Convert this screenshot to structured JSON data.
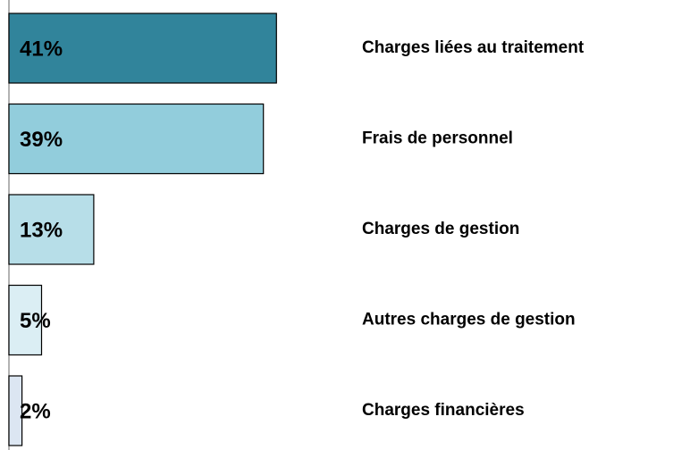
{
  "chart_data": {
    "type": "hbar",
    "categories": [
      "Charges liées au traitement",
      "Frais de personnel",
      "Charges de gestion",
      "Autres charges de gestion",
      "Charges financières"
    ],
    "values": [
      41,
      39,
      13,
      5,
      2
    ],
    "value_labels": [
      "41%",
      "39%",
      "13%",
      "5%",
      "2%"
    ],
    "colors": [
      "#31849b",
      "#92cddc",
      "#b7dee8",
      "#dbeef4",
      "#dce6f2"
    ]
  }
}
